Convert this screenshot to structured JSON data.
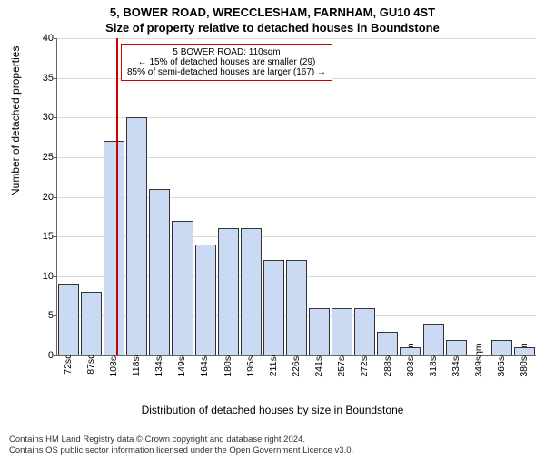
{
  "title_line1": "5, BOWER ROAD, WRECCLESHAM, FARNHAM, GU10 4ST",
  "title_line2": "Size of property relative to detached houses in Boundstone",
  "ylabel": "Number of detached properties",
  "xlabel": "Distribution of detached houses by size in Boundstone",
  "chart": {
    "type": "histogram",
    "ylim": [
      0,
      40
    ],
    "ytick_step": 5,
    "grid_color": "#d9d9d9",
    "background_color": "#ffffff",
    "bar_fill": "#c9daf2",
    "bar_stroke": "#333333",
    "marker_color": "#cc0000",
    "axis_color": "#666666",
    "label_fontsize": 12,
    "tick_fontsize": 11,
    "categories": [
      "72sqm",
      "87sqm",
      "103sqm",
      "118sqm",
      "134sqm",
      "149sqm",
      "164sqm",
      "180sqm",
      "195sqm",
      "211sqm",
      "226sqm",
      "241sqm",
      "257sqm",
      "272sqm",
      "288sqm",
      "303sqm",
      "318sqm",
      "334sqm",
      "349sqm",
      "365sqm",
      "380sqm"
    ],
    "values": [
      9,
      8,
      27,
      30,
      21,
      17,
      14,
      16,
      16,
      12,
      12,
      6,
      6,
      6,
      3,
      1,
      4,
      2,
      0,
      2,
      1
    ],
    "marker_position_index": 2.6,
    "annotation": {
      "line1": "5 BOWER ROAD: 110sqm",
      "line2": "← 15% of detached houses are smaller (29)",
      "line3": "85% of semi-detached houses are larger (167) →",
      "border_color": "#cc0000",
      "bg_color": "#ffffff",
      "fontsize": 10
    }
  },
  "footer": {
    "line1": "Contains HM Land Registry data © Crown copyright and database right 2024.",
    "line2": "Contains OS public sector information licensed under the Open Government Licence v3.0."
  }
}
